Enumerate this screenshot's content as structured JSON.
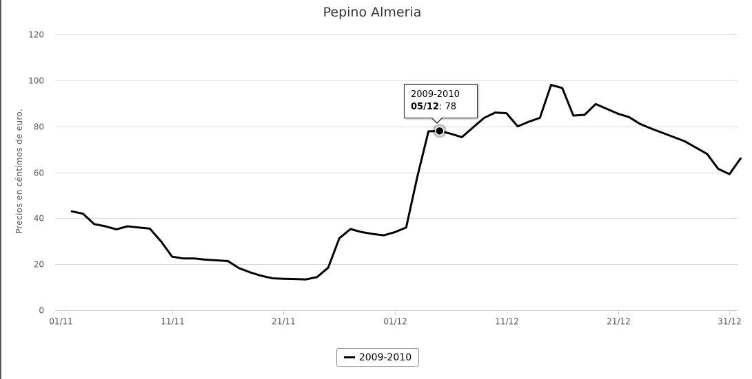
{
  "chart_data": {
    "type": "line",
    "title": "Pepino Almeria",
    "xlabel": "",
    "ylabel": "Precios en céntimos de euro.",
    "ylim": [
      0,
      120
    ],
    "y_ticks": [
      "0",
      "20",
      "40",
      "60",
      "80",
      "100",
      "120"
    ],
    "x_ticks": [
      {
        "label": "01/11",
        "day": 1
      },
      {
        "label": "11/11",
        "day": 11
      },
      {
        "label": "21/11",
        "day": 21
      },
      {
        "label": "01/12",
        "day": 31
      },
      {
        "label": "11/12",
        "day": 41
      },
      {
        "label": "21/12",
        "day": 51
      },
      {
        "label": "31/12",
        "day": 61
      }
    ],
    "grid": true,
    "legend_position": "bottom-center",
    "color": "#000000",
    "series": [
      {
        "name": "2009-2010",
        "points": [
          [
            "02/11",
            43
          ],
          [
            "03/11",
            42
          ],
          [
            "04/11",
            37.5
          ],
          [
            "05/11",
            36.5
          ],
          [
            "06/11",
            35.2
          ],
          [
            "07/11",
            36.5
          ],
          [
            "08/11",
            36
          ],
          [
            "09/11",
            35.5
          ],
          [
            "10/11",
            30
          ],
          [
            "11/11",
            23.3
          ],
          [
            "12/11",
            22.5
          ],
          [
            "13/11",
            22.5
          ],
          [
            "14/11",
            22
          ],
          [
            "15/11",
            21.7
          ],
          [
            "16/11",
            21.4
          ],
          [
            "17/11",
            18.3
          ],
          [
            "18/11",
            16.5
          ],
          [
            "19/11",
            15
          ],
          [
            "20/11",
            13.9
          ],
          [
            "21/11",
            13.7
          ],
          [
            "22/11",
            13.6
          ],
          [
            "23/11",
            13.4
          ],
          [
            "24/11",
            14.4
          ],
          [
            "25/11",
            18.5
          ],
          [
            "26/11",
            31.3
          ],
          [
            "27/11",
            35.3
          ],
          [
            "28/11",
            34
          ],
          [
            "29/11",
            33.2
          ],
          [
            "30/11",
            32.6
          ],
          [
            "01/12",
            34
          ],
          [
            "02/12",
            36
          ],
          [
            "03/12",
            58
          ],
          [
            "04/12",
            77.8
          ],
          [
            "05/12",
            78
          ],
          [
            "06/12",
            76.8
          ],
          [
            "07/12",
            75.3
          ],
          [
            "08/12",
            79.5
          ],
          [
            "09/12",
            83.7
          ],
          [
            "10/12",
            86
          ],
          [
            "11/12",
            85.7
          ],
          [
            "12/12",
            80
          ],
          [
            "13/12",
            82
          ],
          [
            "14/12",
            83.7
          ],
          [
            "15/12",
            98
          ],
          [
            "16/12",
            96.7
          ],
          [
            "17/12",
            84.7
          ],
          [
            "18/12",
            85
          ],
          [
            "19/12",
            89.7
          ],
          [
            "21/12",
            85.5
          ],
          [
            "22/12",
            84
          ],
          [
            "23/12",
            81
          ],
          [
            "24/12",
            79
          ],
          [
            "27/12",
            73.5
          ],
          [
            "29/12",
            68
          ],
          [
            "30/12",
            61.5
          ],
          [
            "31/12",
            59.2
          ],
          [
            "01/01",
            66
          ]
        ]
      }
    ],
    "tooltip": {
      "series": "2009-2010",
      "date": "05/12",
      "value": "78"
    }
  }
}
